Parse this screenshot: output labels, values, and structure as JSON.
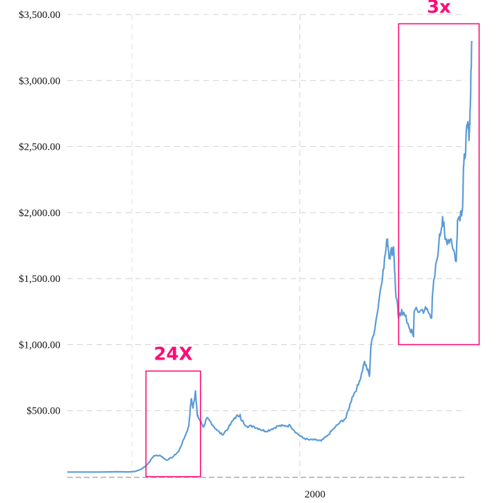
{
  "chart_data": {
    "type": "line",
    "title": "",
    "xlabel": "",
    "ylabel": "",
    "ylim": [
      0,
      3500
    ],
    "xlim": [
      1960,
      2025
    ],
    "y_ticks": [
      {
        "value": 500,
        "label": "$500.00"
      },
      {
        "value": 1000,
        "label": "$1,000.00"
      },
      {
        "value": 1500,
        "label": "$1,500.00"
      },
      {
        "value": 2000,
        "label": "$2,000.00"
      },
      {
        "value": 2500,
        "label": "$2,500.00"
      },
      {
        "value": 3000,
        "label": "$3,000.00"
      },
      {
        "value": 3500,
        "label": "$3,500.00"
      }
    ],
    "x_ticks": [
      {
        "value": 2000,
        "label": "2000"
      }
    ],
    "grid": "dashed",
    "line_color": "#5b9bd5",
    "annotation_color": "#ff0a78",
    "series": [
      {
        "points": [
          [
            1960,
            35
          ],
          [
            1965,
            35
          ],
          [
            1968,
            37
          ],
          [
            1970,
            36
          ],
          [
            1971,
            40
          ],
          [
            1972,
            58
          ],
          [
            1973,
            97
          ],
          [
            1974,
            159
          ],
          [
            1975,
            161
          ],
          [
            1976,
            125
          ],
          [
            1977,
            148
          ],
          [
            1978,
            193
          ],
          [
            1979,
            306
          ],
          [
            1979.6,
            380
          ],
          [
            1980,
            590
          ],
          [
            1980.3,
            520
          ],
          [
            1980.7,
            650
          ],
          [
            1981,
            460
          ],
          [
            1981.5,
            420
          ],
          [
            1982,
            375
          ],
          [
            1982.5,
            440
          ],
          [
            1983,
            424
          ],
          [
            1984,
            360
          ],
          [
            1985,
            317
          ],
          [
            1986,
            368
          ],
          [
            1987,
            446
          ],
          [
            1987.9,
            470
          ],
          [
            1988,
            437
          ],
          [
            1989,
            381
          ],
          [
            1990,
            383
          ],
          [
            1991,
            362
          ],
          [
            1992,
            344
          ],
          [
            1993,
            360
          ],
          [
            1994,
            384
          ],
          [
            1995,
            384
          ],
          [
            1996,
            388
          ],
          [
            1997,
            331
          ],
          [
            1998,
            294
          ],
          [
            1999,
            279
          ],
          [
            2000,
            279
          ],
          [
            2001,
            271
          ],
          [
            2002,
            310
          ],
          [
            2003,
            363
          ],
          [
            2004,
            409
          ],
          [
            2005,
            444
          ],
          [
            2006,
            603
          ],
          [
            2007,
            695
          ],
          [
            2008,
            872
          ],
          [
            2008.8,
            760
          ],
          [
            2009,
            972
          ],
          [
            2010,
            1225
          ],
          [
            2011,
            1571
          ],
          [
            2011.7,
            1800
          ],
          [
            2012,
            1669
          ],
          [
            2012.7,
            1740
          ],
          [
            2013,
            1411
          ],
          [
            2013.5,
            1200
          ],
          [
            2014,
            1266
          ],
          [
            2015,
            1160
          ],
          [
            2015.9,
            1060
          ],
          [
            2016,
            1251
          ],
          [
            2017,
            1257
          ],
          [
            2018,
            1268
          ],
          [
            2018.8,
            1200
          ],
          [
            2019,
            1393
          ],
          [
            2020,
            1770
          ],
          [
            2020.6,
            1970
          ],
          [
            2021,
            1798
          ],
          [
            2022,
            1800
          ],
          [
            2022.8,
            1630
          ],
          [
            2023,
            1943
          ],
          [
            2023.8,
            2030
          ],
          [
            2024,
            2350
          ],
          [
            2024.6,
            2650
          ],
          [
            2024.9,
            2600
          ],
          [
            2025.1,
            2850
          ],
          [
            2025.3,
            3300
          ]
        ]
      }
    ],
    "annotations": [
      {
        "label": "24X",
        "x_range": [
          1972.7,
          1981.5
        ],
        "y_range": [
          0,
          800
        ]
      },
      {
        "label": "3x",
        "x_range": [
          2013.5,
          2026.5
        ],
        "y_range": [
          1000,
          3430
        ]
      }
    ]
  }
}
